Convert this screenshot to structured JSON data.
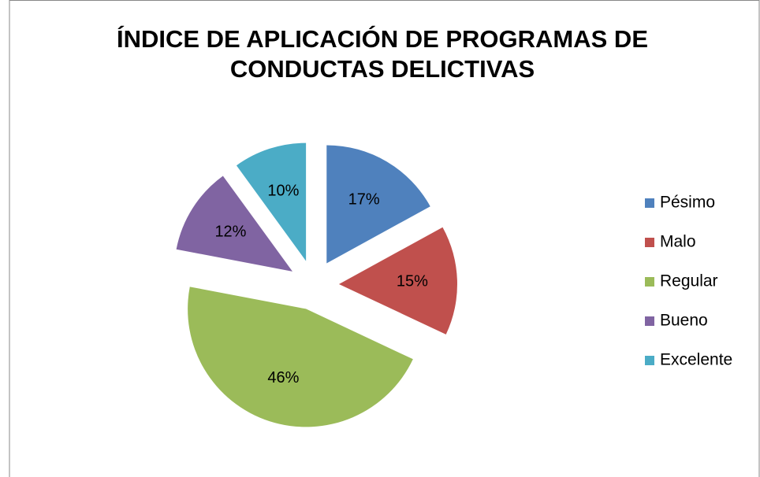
{
  "chart_data": {
    "type": "pie",
    "title": [
      "ÍNDICE DE APLICACIÓN DE PROGRAMAS DE",
      "CONDUCTAS DELICTIVAS"
    ],
    "categories": [
      "Pésimo",
      "Malo",
      "Regular",
      "Bueno",
      "Excelente"
    ],
    "values": [
      17,
      15,
      46,
      12,
      10
    ],
    "value_labels": [
      "17%",
      "15%",
      "46%",
      "12%",
      "10%"
    ],
    "colors": [
      "#4f81bd",
      "#c0504d",
      "#9bbb59",
      "#8064a2",
      "#4bacc6"
    ],
    "legend": "right"
  }
}
